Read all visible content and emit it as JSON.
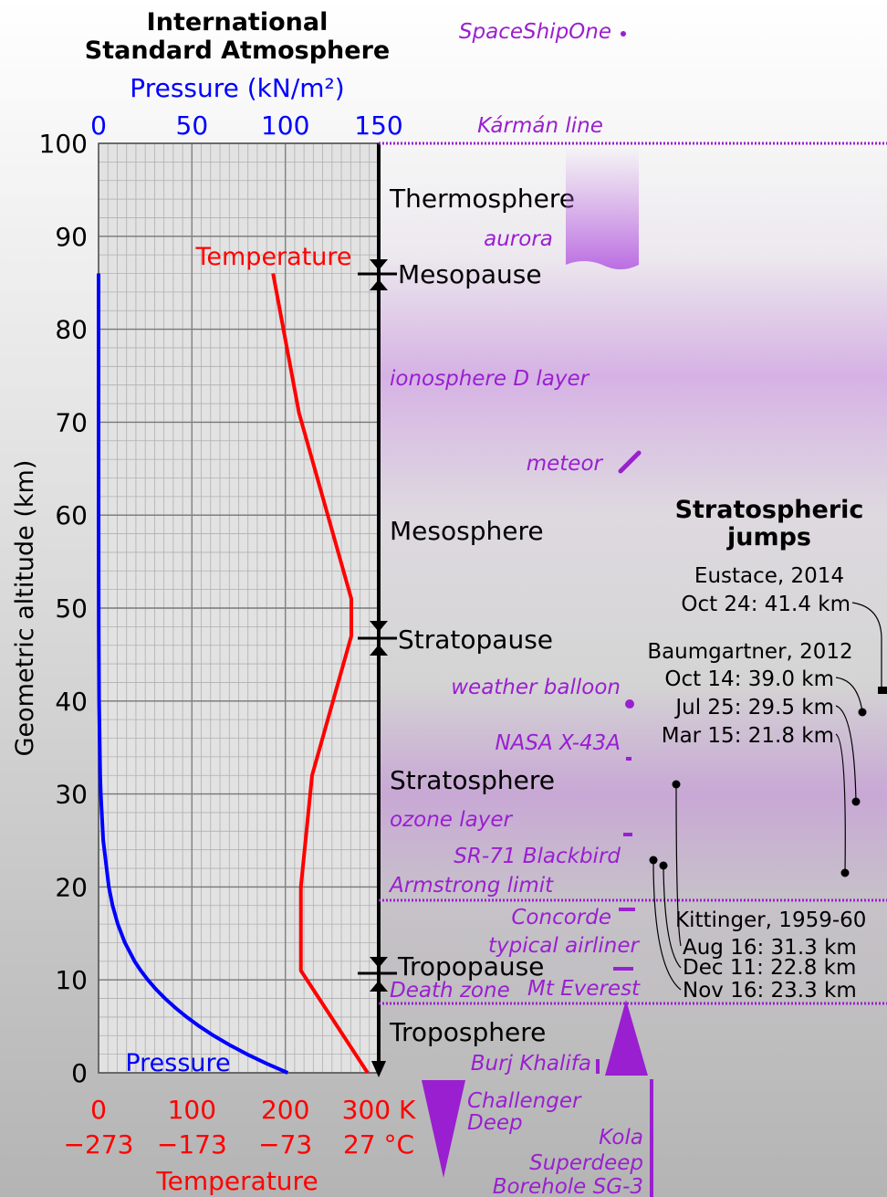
{
  "chart_data": {
    "type": "line",
    "title_lines": [
      "International",
      "Standard Atmosphere"
    ],
    "x_label": "Pressure (kN/m²)",
    "x2_label": "Temperature",
    "y_label": "Geometric altitude (km)",
    "ylim": [
      0,
      100
    ],
    "yticks": [
      0,
      10,
      20,
      30,
      40,
      50,
      60,
      70,
      80,
      90,
      100
    ],
    "xlim": [
      0,
      150
    ],
    "xticks": [
      0,
      50,
      100,
      150
    ],
    "x2lim": [
      0,
      300
    ],
    "x2ticks": [
      0,
      100,
      200,
      {
        "value": 300,
        "label": "300 K"
      }
    ],
    "x2ticks_celsius": [
      {
        "value": 0,
        "label": "−273"
      },
      {
        "value": 100,
        "label": "−173"
      },
      {
        "value": 200,
        "label": "−73"
      },
      {
        "value": 300,
        "label": "27 °C"
      }
    ],
    "grid": true,
    "series": [
      {
        "name": "Pressure",
        "color": "#0000ff",
        "axis": "x",
        "altitude": [
          0,
          1,
          2,
          3,
          4,
          5,
          6,
          7,
          8,
          9,
          10,
          11,
          12,
          14,
          16,
          18,
          20,
          25,
          30,
          32,
          40,
          47,
          51,
          60,
          71,
          80,
          86
        ],
        "values": [
          101.3,
          89.9,
          79.5,
          70.1,
          61.6,
          54.0,
          47.2,
          41.1,
          35.6,
          30.7,
          26.4,
          22.6,
          19.3,
          14.1,
          10.3,
          7.5,
          5.5,
          2.5,
          1.2,
          0.87,
          0.29,
          0.11,
          0.067,
          0.022,
          0.004,
          0.001,
          0.0004
        ]
      },
      {
        "name": "Temperature",
        "color": "#ff0000",
        "axis": "x2",
        "altitude": [
          0,
          11,
          20,
          32,
          47,
          51,
          71,
          86
        ],
        "values": [
          288.15,
          216.65,
          216.65,
          228.65,
          270.65,
          270.65,
          214.65,
          186.87
        ]
      }
    ],
    "layers": [
      "Thermosphere",
      "Mesopause",
      "Mesosphere",
      "Stratopause",
      "Stratosphere",
      "Tropopause",
      "Troposphere"
    ],
    "annotations": {
      "spaceshipone": "SpaceShipOne",
      "karman": "Kármán line",
      "aurora": "aurora",
      "ionosphere": "ionosphere D layer",
      "meteor": "meteor",
      "balloon": "weather balloon",
      "x43a": "NASA X-43A",
      "ozone": "ozone layer",
      "sr71": "SR-71 Blackbird",
      "armstrong": "Armstrong limit",
      "concorde": "Concorde",
      "airliner": "typical airliner",
      "deathzone": "Death zone",
      "everest": "Mt Everest",
      "burj": "Burj Khalifa",
      "challenger": [
        "Challenger",
        "Deep"
      ],
      "kola": [
        "Kola",
        "Superdeep",
        "Borehole SG-3"
      ]
    },
    "jumps": {
      "title_lines": [
        "Stratospheric",
        "jumps"
      ],
      "eustace": [
        "Eustace, 2014",
        "Oct 24: 41.4 km"
      ],
      "baumgartner": [
        "Baumgartner, 2012",
        "Oct 14: 39.0 km",
        "Jul 25: 29.5 km",
        "Mar 15: 21.8 km"
      ],
      "kittinger": [
        "Kittinger, 1959-60",
        "Aug 16: 31.3 km",
        "Dec 11: 22.8 km",
        "Nov 16: 23.3 km"
      ]
    }
  }
}
